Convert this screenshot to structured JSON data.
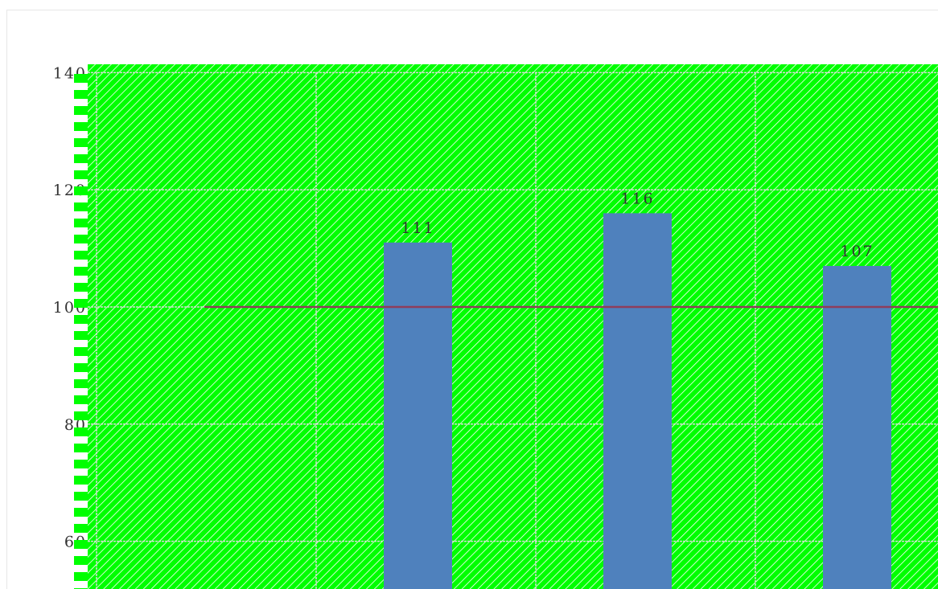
{
  "chart_data": {
    "type": "bar",
    "categories": [
      "",
      "",
      "",
      ""
    ],
    "values": [
      null,
      111,
      116,
      107
    ],
    "data_labels": [
      "",
      "111",
      "116",
      "107"
    ],
    "reference_line": 100,
    "title": "",
    "xlabel": "",
    "ylabel": "",
    "ylim": [
      52,
      140
    ],
    "y_ticks": [
      {
        "value": 140,
        "label": "140"
      },
      {
        "value": 120,
        "label": "120"
      },
      {
        "value": 100,
        "label": "100"
      },
      {
        "value": 80,
        "label": "80"
      },
      {
        "value": 60,
        "label": "60"
      }
    ],
    "grid": true,
    "legend": "none"
  },
  "colors": {
    "plot_background": "#00ff00",
    "hatch": "#ffffff",
    "bar": "#4f81bd",
    "reference_line": "#8e3d5b",
    "grid": "#d8d8d8",
    "axis_marks": "#00ff00"
  }
}
